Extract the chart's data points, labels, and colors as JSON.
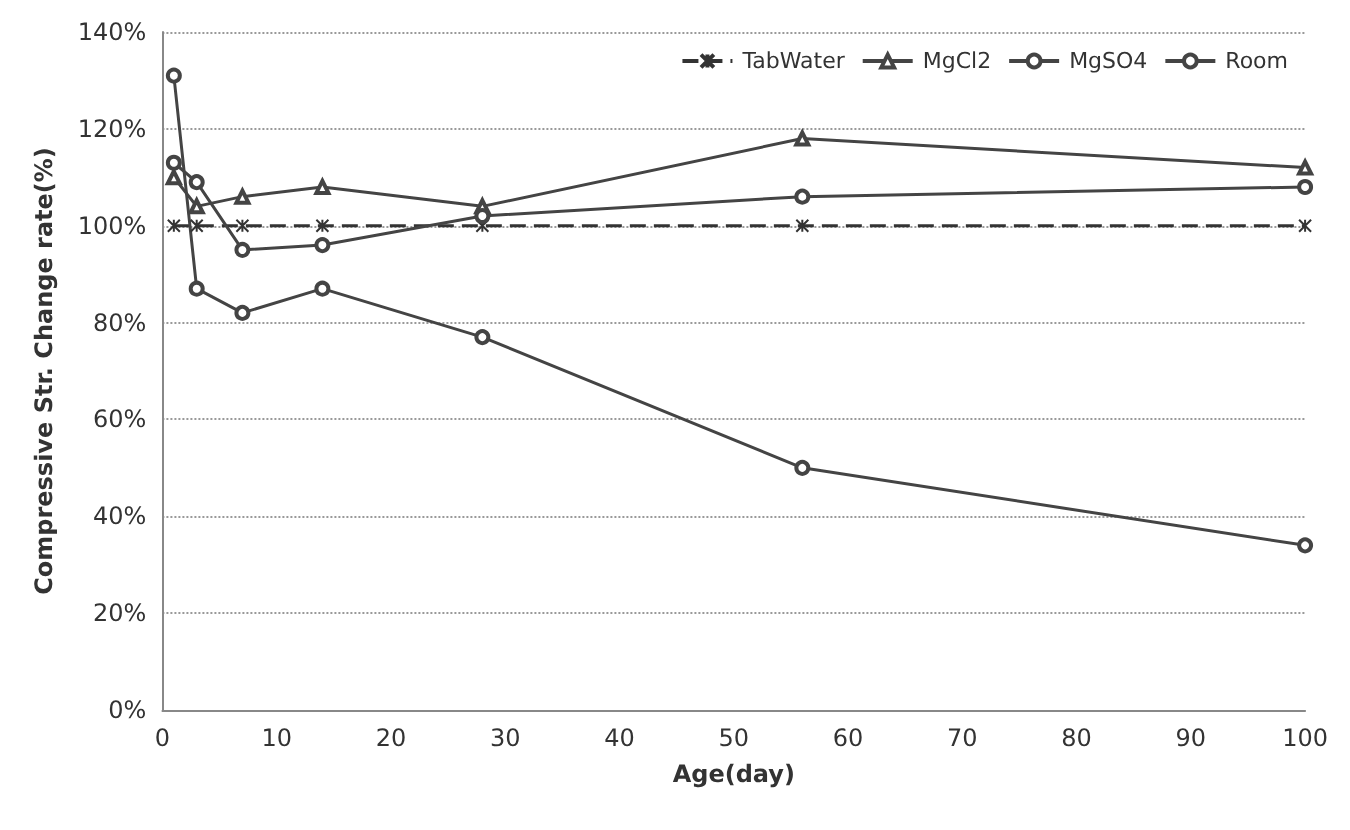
{
  "chart_data": {
    "type": "line",
    "xlabel": "Age(day)",
    "ylabel": "Compressive Str. Change rate(%)",
    "x": [
      1,
      3,
      7,
      14,
      28,
      56,
      100
    ],
    "series": [
      {
        "name": "TabWater",
        "color": "#333333",
        "marker": "cross",
        "line_style": "dashed",
        "values": [
          100,
          100,
          100,
          100,
          100,
          100,
          100
        ]
      },
      {
        "name": "MgCl2",
        "color": "#444444",
        "marker": "triangle",
        "values": [
          110,
          104,
          106,
          108,
          104,
          118,
          112
        ]
      },
      {
        "name": "MgSO4",
        "color": "#444444",
        "marker": "circle",
        "values": [
          131,
          87,
          82,
          87,
          77,
          50,
          34
        ]
      },
      {
        "name": "Room",
        "color": "#444444",
        "marker": "circle",
        "values": [
          113,
          109,
          95,
          96,
          102,
          106,
          108
        ]
      }
    ],
    "xlim": [
      0,
      100
    ],
    "xticks": [
      0,
      10,
      20,
      30,
      40,
      50,
      60,
      70,
      80,
      90,
      100
    ],
    "ylim": [
      0,
      140
    ],
    "yticks": [
      {
        "value": 0,
        "label": "0%"
      },
      {
        "value": 20,
        "label": "20%"
      },
      {
        "value": 40,
        "label": "40%"
      },
      {
        "value": 60,
        "label": "60%"
      },
      {
        "value": 80,
        "label": "80%"
      },
      {
        "value": 100,
        "label": "100%"
      },
      {
        "value": 120,
        "label": "120%"
      },
      {
        "value": 140,
        "label": "140%"
      }
    ],
    "grid": "y",
    "legend": "top right"
  }
}
